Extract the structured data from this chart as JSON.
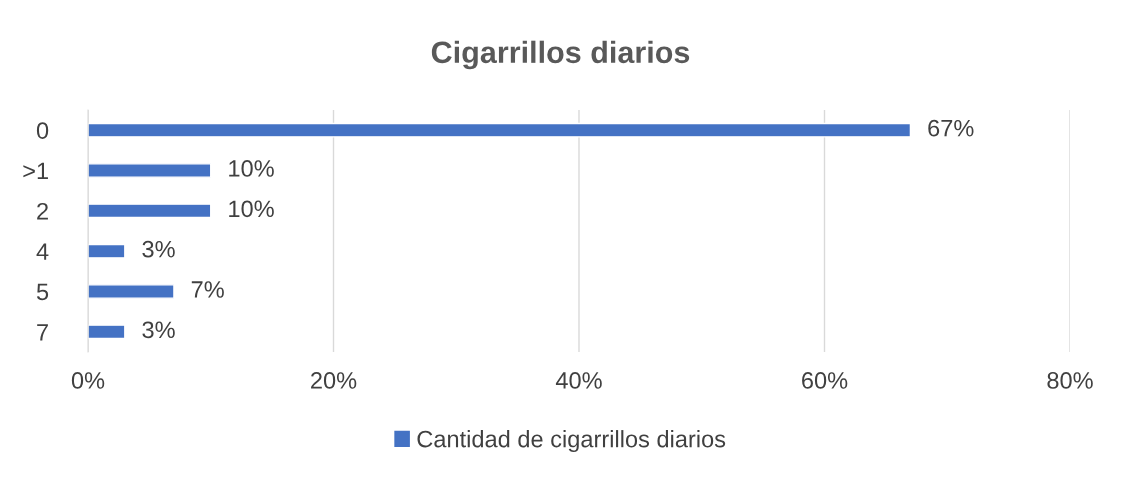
{
  "chart_data": {
    "type": "bar",
    "orientation": "horizontal",
    "title": "Cigarrillos diarios",
    "categories": [
      "0",
      ">1",
      "2",
      "4",
      "5",
      "7"
    ],
    "series": [
      {
        "name": "Cantidad de cigarrillos diarios",
        "color": "#4472c4",
        "values": [
          67,
          10,
          10,
          3,
          7,
          3
        ]
      }
    ],
    "value_labels": [
      "67%",
      "10%",
      "10%",
      "3%",
      "7%",
      "3%"
    ],
    "xlim": [
      0,
      80
    ],
    "xticks": [
      {
        "value": 0,
        "label": "0%"
      },
      {
        "value": 20,
        "label": "20%"
      },
      {
        "value": 40,
        "label": "40%"
      },
      {
        "value": 60,
        "label": "60%"
      },
      {
        "value": 80,
        "label": "80%"
      }
    ],
    "grid": "x",
    "legend": "bottom"
  }
}
